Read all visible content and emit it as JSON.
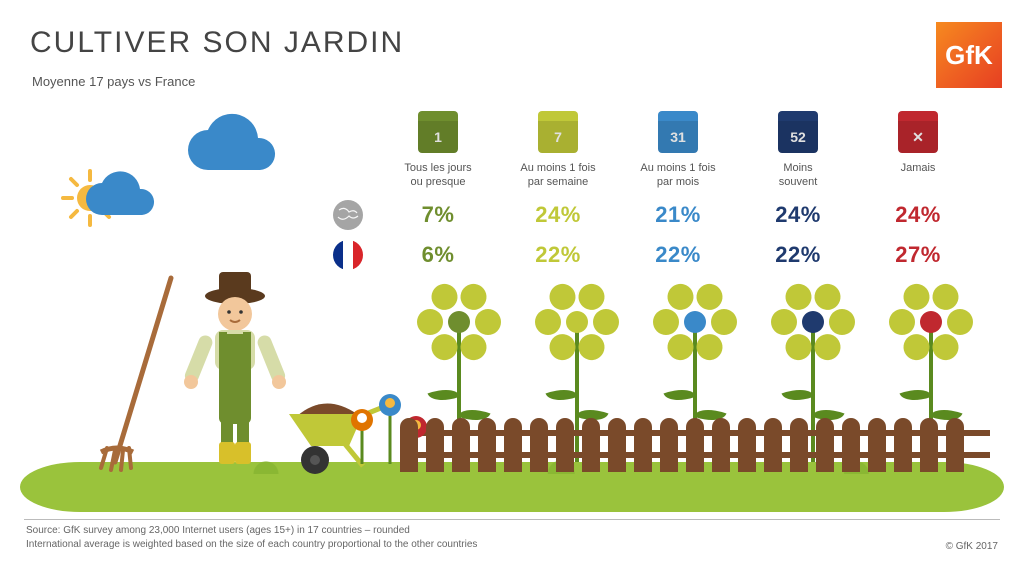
{
  "title": "CULTIVER SON JARDIN",
  "subtitle": "Moyenne 17 pays vs France",
  "logo_text": "GfK",
  "logo_gradient": [
    "#f68a1f",
    "#ef6322",
    "#e63f22"
  ],
  "columns": [
    {
      "key": "daily",
      "icon_text": "1",
      "label": "Tous les jours\nou presque",
      "color": "#6f8e2e"
    },
    {
      "key": "weekly",
      "icon_text": "7",
      "label": "Au moins 1 fois\npar semaine",
      "color": "#c0c838"
    },
    {
      "key": "monthly",
      "icon_text": "31",
      "label": "Au moins 1 fois\npar mois",
      "color": "#3a89c9"
    },
    {
      "key": "rarely",
      "icon_text": "52",
      "label": "Moins\nsouvent",
      "color": "#1f3a6e"
    },
    {
      "key": "never",
      "icon_text": "✕",
      "label": "Jamais",
      "color": "#c0282f"
    }
  ],
  "rows": [
    {
      "key": "world",
      "icon": "globe",
      "values": [
        "7%",
        "24%",
        "21%",
        "24%",
        "24%"
      ]
    },
    {
      "key": "france",
      "icon": "flag-france",
      "values": [
        "6%",
        "22%",
        "22%",
        "22%",
        "27%"
      ]
    }
  ],
  "pct_fontsize": 22,
  "label_fontsize": 11,
  "globe_color": "#a5a5a5",
  "flag_france_colors": [
    "#0a2f8a",
    "#ffffff",
    "#d9252a"
  ],
  "weather": {
    "cloud_color": "#3a89c9",
    "sun_color": "#f5b940"
  },
  "scene": {
    "grass_color": "#9ac33c",
    "grass_dark": "#8ab733",
    "fence_color": "#7a4a2a",
    "picket_count": 22,
    "big_flower_petal_color": "#c0c838",
    "big_flower_centers": [
      "#6f8e2e",
      "#c0c838",
      "#3a89c9",
      "#1f3a6e",
      "#c0282f"
    ],
    "stem_color": "#5a8a1f",
    "gardener": {
      "skin": "#f2c79b",
      "hat": "#5a3a1e",
      "shirt": "#d6dca8",
      "overalls": "#6f8e2e",
      "boots": "#d8c02a"
    },
    "rake_color": "#a86b3a",
    "wheelbarrow_body": "#c0c838",
    "wheelbarrow_dirt": "#7a4a2a",
    "wheel_color": "#333333",
    "small_flowers": [
      {
        "color": "#e07400",
        "center": "#fff",
        "h": 55,
        "x": 0
      },
      {
        "color": "#3a89c9",
        "center": "#f5b940",
        "h": 70,
        "x": 28
      },
      {
        "color": "#c0282f",
        "center": "#f5b940",
        "h": 48,
        "x": 54
      }
    ]
  },
  "footnote_line1": "Source: GfK survey among 23,000 Internet users (ages 15+) in 17 countries – rounded",
  "footnote_line2": "International average is weighted based on the size of each country proportional to the other countries",
  "copyright": "© GfK 2017"
}
